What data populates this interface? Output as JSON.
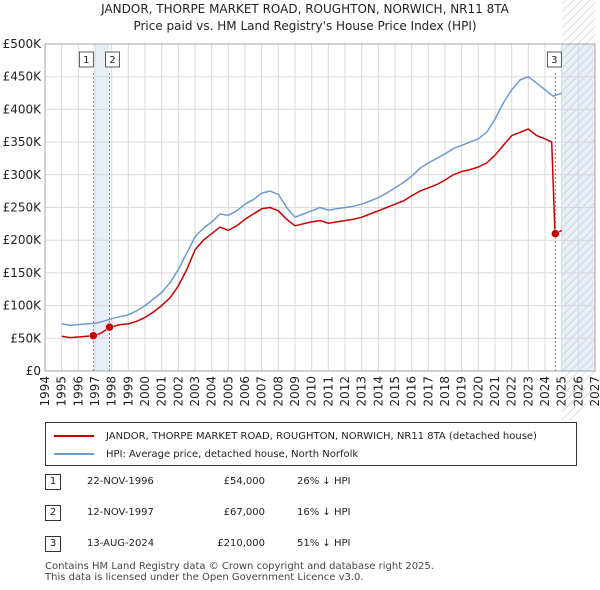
{
  "title_line1": "JANDOR, THORPE MARKET ROAD, ROUGHTON, NORWICH, NR11 8TA",
  "title_line2": "Price paid vs. HM Land Registry's House Price Index (HPI)",
  "colors": {
    "property": "#cc0000",
    "hpi": "#6b9bd1",
    "grid": "#d9d9d9",
    "shade": "#e8eef8"
  },
  "chart_data": {
    "type": "line",
    "title": "JANDOR, THORPE MARKET ROAD, ROUGHTON, NORWICH, NR11 8TA — Price paid vs. HM Land Registry's House Price Index (HPI)",
    "xlabel": "",
    "ylabel": "",
    "xlim": [
      1994,
      2027
    ],
    "ylim": [
      0,
      500000
    ],
    "x_ticks": [
      "1994",
      "1995",
      "1996",
      "1997",
      "1998",
      "1999",
      "2000",
      "2001",
      "2002",
      "2003",
      "2004",
      "2005",
      "2006",
      "2007",
      "2008",
      "2009",
      "2010",
      "2011",
      "2012",
      "2013",
      "2014",
      "2015",
      "2016",
      "2017",
      "2018",
      "2019",
      "2020",
      "2021",
      "2022",
      "2023",
      "2024",
      "2025",
      "2026",
      "2027"
    ],
    "y_ticks": [
      {
        "value": 0,
        "label": "£0"
      },
      {
        "value": 50000,
        "label": "£50K"
      },
      {
        "value": 100000,
        "label": "£100K"
      },
      {
        "value": 150000,
        "label": "£150K"
      },
      {
        "value": 200000,
        "label": "£200K"
      },
      {
        "value": 250000,
        "label": "£250K"
      },
      {
        "value": 300000,
        "label": "£300K"
      },
      {
        "value": 350000,
        "label": "£350K"
      },
      {
        "value": 400000,
        "label": "£400K"
      },
      {
        "value": 450000,
        "label": "£450K"
      },
      {
        "value": 500000,
        "label": "£500K"
      }
    ],
    "series": [
      {
        "name": "JANDOR, THORPE MARKET ROAD, ROUGHTON, NORWICH, NR11 8TA (detached house)",
        "x": [
          1995.0,
          1995.5,
          1996.0,
          1996.5,
          1996.9,
          1997.3,
          1997.9,
          1998.5,
          1999.0,
          1999.5,
          2000.0,
          2000.5,
          2001.0,
          2001.5,
          2002.0,
          2002.5,
          2003.0,
          2003.5,
          2004.0,
          2004.5,
          2005.0,
          2005.5,
          2006.0,
          2006.5,
          2007.0,
          2007.5,
          2008.0,
          2008.5,
          2009.0,
          2009.5,
          2010.0,
          2010.5,
          2011.0,
          2011.5,
          2012.0,
          2012.5,
          2013.0,
          2013.5,
          2014.0,
          2014.5,
          2015.0,
          2015.5,
          2016.0,
          2016.5,
          2017.0,
          2017.5,
          2018.0,
          2018.5,
          2019.0,
          2019.5,
          2020.0,
          2020.5,
          2021.0,
          2021.5,
          2022.0,
          2022.5,
          2023.0,
          2023.5,
          2024.0,
          2024.4,
          2024.6,
          2025.0
        ],
        "values": [
          53000,
          51000,
          52000,
          53000,
          54000,
          57000,
          67000,
          71000,
          72000,
          76000,
          82000,
          90000,
          100000,
          112000,
          130000,
          155000,
          185000,
          200000,
          210000,
          220000,
          215000,
          222000,
          232000,
          240000,
          248000,
          250000,
          245000,
          232000,
          222000,
          225000,
          228000,
          230000,
          226000,
          228000,
          230000,
          232000,
          235000,
          240000,
          245000,
          250000,
          255000,
          260000,
          268000,
          275000,
          280000,
          285000,
          292000,
          300000,
          305000,
          308000,
          312000,
          318000,
          330000,
          345000,
          360000,
          365000,
          370000,
          360000,
          355000,
          350000,
          210000,
          215000
        ]
      },
      {
        "name": "HPI: Average price, detached house, North Norfolk",
        "x": [
          1995.0,
          1995.5,
          1996.0,
          1996.5,
          1997.0,
          1997.5,
          1998.0,
          1998.5,
          1999.0,
          1999.5,
          2000.0,
          2000.5,
          2001.0,
          2001.5,
          2002.0,
          2002.5,
          2003.0,
          2003.5,
          2004.0,
          2004.5,
          2005.0,
          2005.5,
          2006.0,
          2006.5,
          2007.0,
          2007.5,
          2008.0,
          2008.5,
          2009.0,
          2009.5,
          2010.0,
          2010.5,
          2011.0,
          2011.5,
          2012.0,
          2012.5,
          2013.0,
          2013.5,
          2014.0,
          2014.5,
          2015.0,
          2015.5,
          2016.0,
          2016.5,
          2017.0,
          2017.5,
          2018.0,
          2018.5,
          2019.0,
          2019.5,
          2020.0,
          2020.5,
          2021.0,
          2021.5,
          2022.0,
          2022.5,
          2023.0,
          2023.5,
          2024.0,
          2024.5,
          2025.0
        ],
        "values": [
          72000,
          70000,
          71000,
          72000,
          73000,
          76000,
          80000,
          83000,
          86000,
          92000,
          100000,
          110000,
          120000,
          135000,
          155000,
          180000,
          205000,
          218000,
          228000,
          240000,
          238000,
          245000,
          255000,
          262000,
          272000,
          275000,
          270000,
          250000,
          235000,
          240000,
          245000,
          250000,
          246000,
          248000,
          250000,
          252000,
          255000,
          260000,
          265000,
          272000,
          280000,
          288000,
          298000,
          310000,
          318000,
          325000,
          332000,
          340000,
          345000,
          350000,
          355000,
          365000,
          385000,
          410000,
          430000,
          445000,
          450000,
          440000,
          430000,
          420000,
          425000
        ]
      }
    ],
    "sale_markers": [
      {
        "label": "1",
        "x": 1996.9,
        "value": 54000
      },
      {
        "label": "2",
        "x": 1997.87,
        "value": 67000
      },
      {
        "label": "3",
        "x": 2024.62,
        "value": 210000
      }
    ],
    "shaded_ranges": [
      [
        1996.9,
        1997.87
      ],
      [
        2025.0,
        2027.0
      ]
    ]
  },
  "legend": {
    "property_label": "JANDOR, THORPE MARKET ROAD, ROUGHTON, NORWICH, NR11 8TA (detached house)",
    "hpi_label": "HPI: Average price, detached house, North Norfolk"
  },
  "sales": [
    {
      "num": "1",
      "date": "22-NOV-1996",
      "price": "£54,000",
      "hpi": "26% ↓ HPI"
    },
    {
      "num": "2",
      "date": "12-NOV-1997",
      "price": "£67,000",
      "hpi": "16% ↓ HPI"
    },
    {
      "num": "3",
      "date": "13-AUG-2024",
      "price": "£210,000",
      "hpi": "51% ↓ HPI"
    }
  ],
  "footer_line1": "Contains HM Land Registry data © Crown copyright and database right 2025.",
  "footer_line2": "This data is licensed under the Open Government Licence v3.0."
}
